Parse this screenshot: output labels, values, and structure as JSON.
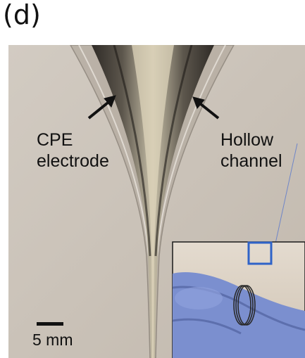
{
  "panel_label": "(d)",
  "annotations": {
    "left_line1": "CPE",
    "left_line2": "electrode",
    "right_line1": "Hollow",
    "right_line2": "channel"
  },
  "scale_bar": {
    "label": "5 mm"
  },
  "colors": {
    "background": "#c9c0b6",
    "electrode": "#3f3b37",
    "glove": "#7b8fcf",
    "inset_border": "#1a1a1a",
    "zoom_box": "#2f63c8"
  }
}
